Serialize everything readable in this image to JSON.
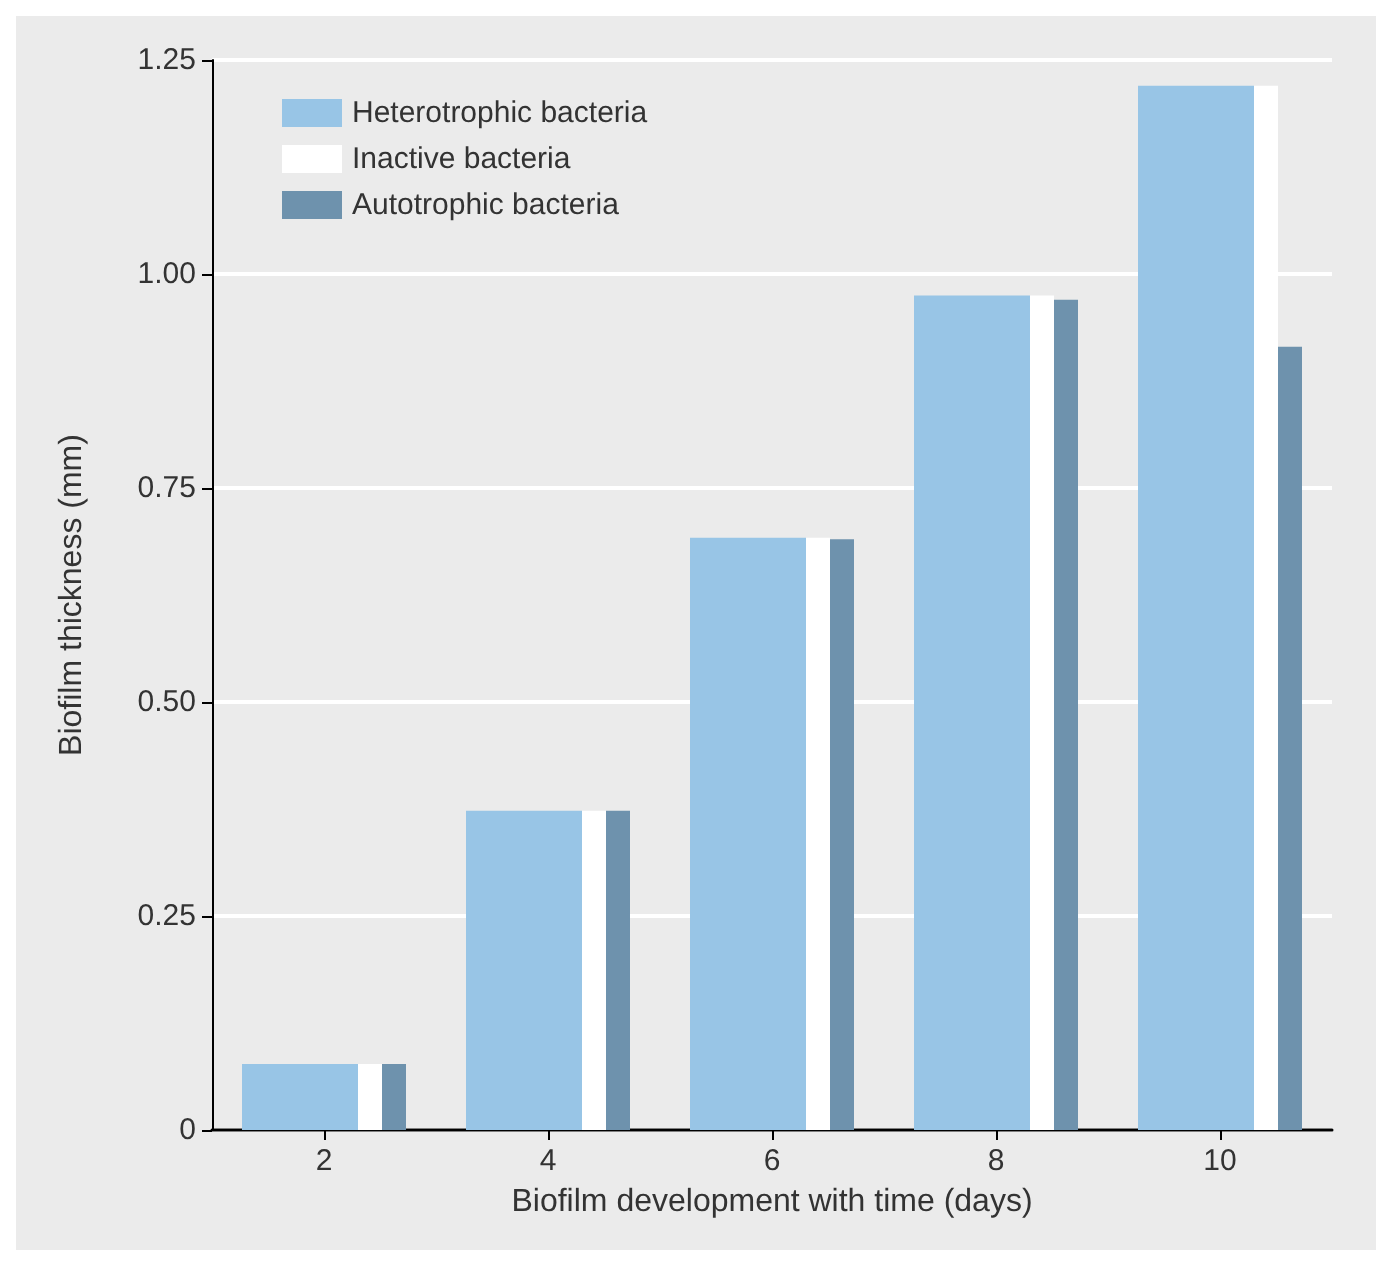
{
  "chart_data": {
    "type": "bar",
    "xlabel": "Biofilm development with time (days)",
    "ylabel": "Biofilm thickness (mm)",
    "categories": [
      "2",
      "4",
      "6",
      "8",
      "10"
    ],
    "series": [
      {
        "name": "Heterotrophic bacteria",
        "color": "#98c5e6",
        "values": [
          0.077,
          0.373,
          0.692,
          0.975,
          1.22
        ]
      },
      {
        "name": "Inactive bacteria",
        "color": "#ffffff",
        "values": [
          0.077,
          0.373,
          0.692,
          0.975,
          1.22
        ]
      },
      {
        "name": "Autotrophic bacteria",
        "color": "#6e92ad",
        "values": [
          0.077,
          0.373,
          0.69,
          0.97,
          0.915
        ]
      }
    ],
    "ylim": [
      0,
      1.25
    ],
    "yticks": [
      0,
      {
        "value": 0.25,
        "label": "0.25"
      },
      {
        "value": 0.5,
        "label": "0.50"
      },
      {
        "value": 0.75,
        "label": "0.75"
      },
      {
        "value": 1,
        "label": "1.00"
      },
      {
        "value": 1.25,
        "label": "1.25"
      }
    ],
    "grid": "y",
    "legend": "top left"
  }
}
